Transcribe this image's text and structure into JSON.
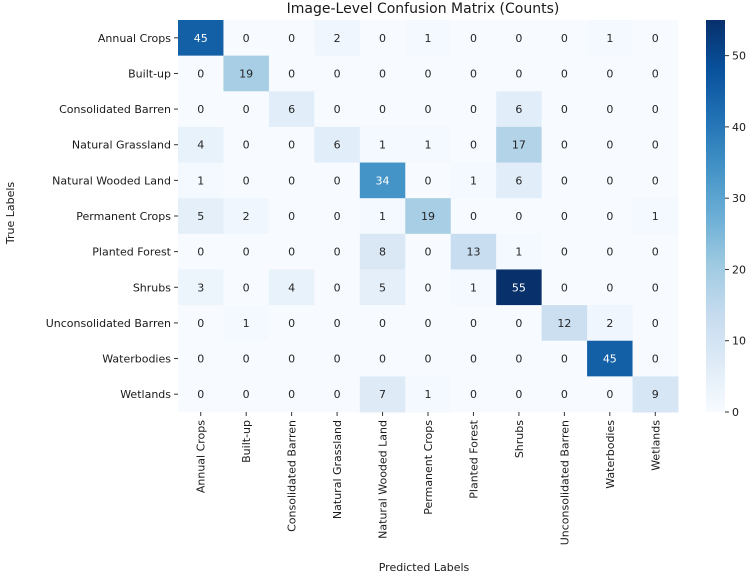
{
  "chart_data": {
    "type": "heatmap",
    "title": "Image-Level Confusion Matrix (Counts)",
    "xlabel": "Predicted Labels",
    "ylabel": "True Labels",
    "x_categories": [
      "Annual Crops",
      "Built-up",
      "Consolidated Barren",
      "Natural Grassland",
      "Natural Wooded Land",
      "Permanent Crops",
      "Planted Forest",
      "Shrubs",
      "Unconsolidated Barren",
      "Waterbodies",
      "Wetlands"
    ],
    "y_categories": [
      "Annual Crops",
      "Built-up",
      "Consolidated Barren",
      "Natural Grassland",
      "Natural Wooded Land",
      "Permanent Crops",
      "Planted Forest",
      "Shrubs",
      "Unconsolidated Barren",
      "Waterbodies",
      "Wetlands"
    ],
    "values": [
      [
        45,
        0,
        0,
        2,
        0,
        1,
        0,
        0,
        0,
        1,
        0
      ],
      [
        0,
        19,
        0,
        0,
        0,
        0,
        0,
        0,
        0,
        0,
        0
      ],
      [
        0,
        0,
        6,
        0,
        0,
        0,
        0,
        6,
        0,
        0,
        0
      ],
      [
        4,
        0,
        0,
        6,
        1,
        1,
        0,
        17,
        0,
        0,
        0
      ],
      [
        1,
        0,
        0,
        0,
        34,
        0,
        1,
        6,
        0,
        0,
        0
      ],
      [
        5,
        2,
        0,
        0,
        1,
        19,
        0,
        0,
        0,
        0,
        1
      ],
      [
        0,
        0,
        0,
        0,
        8,
        0,
        13,
        1,
        0,
        0,
        0
      ],
      [
        3,
        0,
        4,
        0,
        5,
        0,
        1,
        55,
        0,
        0,
        0
      ],
      [
        0,
        1,
        0,
        0,
        0,
        0,
        0,
        0,
        12,
        2,
        0
      ],
      [
        0,
        0,
        0,
        0,
        0,
        0,
        0,
        0,
        0,
        45,
        0
      ],
      [
        0,
        0,
        0,
        0,
        7,
        1,
        0,
        0,
        0,
        0,
        9
      ]
    ],
    "colorbar": {
      "colormap": "Blues",
      "range": [
        0,
        55
      ],
      "ticks": [
        0,
        10,
        20,
        30,
        40,
        50
      ]
    }
  }
}
